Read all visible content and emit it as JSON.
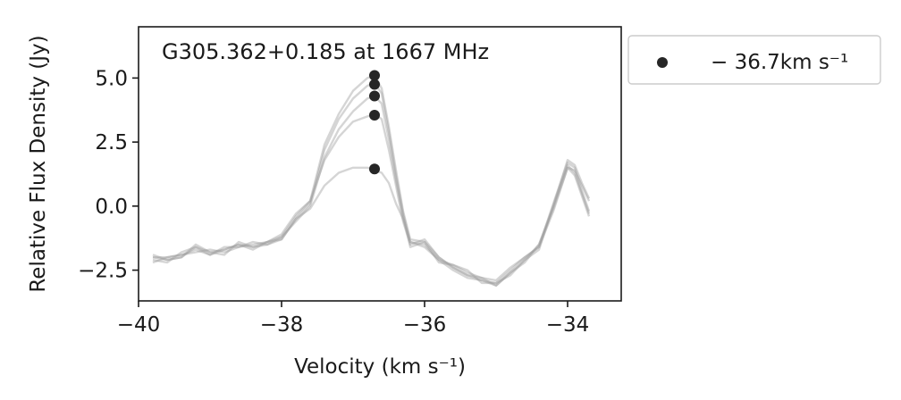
{
  "chart_data": {
    "type": "line",
    "title": "G305.362+0.185 at 1667 MHz",
    "xlabel": "Velocity (km s⁻¹)",
    "ylabel": "Relative Flux Density (Jy)",
    "xlim": [
      -40,
      -33.25
    ],
    "ylim": [
      -3.7,
      7.0
    ],
    "xticks": [
      -40,
      -38,
      -36,
      -34
    ],
    "xtick_labels": [
      "−40",
      "−38",
      "−36",
      "−34"
    ],
    "yticks": [
      -2.5,
      0.0,
      2.5,
      5.0
    ],
    "ytick_labels": [
      "−2.5",
      "0.0",
      "2.5",
      "5.0"
    ],
    "grid": false,
    "legend": {
      "position": "outside-right",
      "entries": [
        {
          "label": "− 36.7km s⁻¹",
          "marker": "dot",
          "color": "#262626"
        }
      ]
    },
    "line_color": "#9a9a9a",
    "series": [
      {
        "x": [
          -39.8,
          -39.6,
          -39.4,
          -39.2,
          -39.0,
          -38.8,
          -38.6,
          -38.4,
          -38.2,
          -38.0,
          -37.8,
          -37.6,
          -37.4,
          -37.2,
          -37.0,
          -36.8,
          -36.7,
          -36.6,
          -36.5,
          -36.4,
          -36.3,
          -36.2,
          -36.0,
          -35.8,
          -35.6,
          -35.4,
          -35.2,
          -35.0,
          -34.8,
          -34.6,
          -34.4,
          -34.2,
          -34.0,
          -33.9,
          -33.8,
          -33.7
        ],
        "values": [
          -2.0,
          -2.1,
          -2.0,
          -1.6,
          -1.9,
          -1.7,
          -1.5,
          -1.6,
          -1.4,
          -1.3,
          -0.5,
          -0.1,
          0.8,
          1.3,
          1.5,
          1.5,
          1.4,
          1.3,
          0.9,
          0.1,
          -0.5,
          -1.4,
          -1.6,
          -2.1,
          -2.3,
          -2.6,
          -2.8,
          -2.9,
          -2.4,
          -2.0,
          -1.6,
          -0.2,
          1.5,
          1.4,
          0.8,
          0.2
        ]
      },
      {
        "x": [
          -39.8,
          -39.6,
          -39.4,
          -39.2,
          -39.0,
          -38.8,
          -38.6,
          -38.4,
          -38.2,
          -38.0,
          -37.8,
          -37.6,
          -37.4,
          -37.2,
          -37.0,
          -36.8,
          -36.7,
          -36.6,
          -36.5,
          -36.4,
          -36.3,
          -36.2,
          -36.0,
          -35.8,
          -35.6,
          -35.4,
          -35.2,
          -35.0,
          -34.8,
          -34.6,
          -34.4,
          -34.2,
          -34.0,
          -33.9,
          -33.8,
          -33.7
        ],
        "values": [
          -2.2,
          -2.0,
          -1.9,
          -1.8,
          -1.7,
          -1.8,
          -1.6,
          -1.4,
          -1.5,
          -1.2,
          -0.4,
          0.2,
          1.8,
          2.7,
          3.3,
          3.5,
          3.6,
          3.4,
          2.2,
          0.8,
          -0.6,
          -1.5,
          -1.3,
          -2.0,
          -2.4,
          -2.7,
          -2.9,
          -3.1,
          -2.6,
          -2.2,
          -1.5,
          -0.1,
          1.5,
          1.2,
          0.4,
          -0.4
        ]
      },
      {
        "x": [
          -39.8,
          -39.6,
          -39.4,
          -39.2,
          -39.0,
          -38.8,
          -38.6,
          -38.4,
          -38.2,
          -38.0,
          -37.8,
          -37.6,
          -37.4,
          -37.2,
          -37.0,
          -36.8,
          -36.7,
          -36.6,
          -36.5,
          -36.4,
          -36.3,
          -36.2,
          -36.0,
          -35.8,
          -35.6,
          -35.4,
          -35.2,
          -35.0,
          -34.8,
          -34.6,
          -34.4,
          -34.2,
          -34.0,
          -33.9,
          -33.8,
          -33.7
        ],
        "values": [
          -2.1,
          -2.2,
          -1.8,
          -1.6,
          -1.8,
          -1.7,
          -1.5,
          -1.7,
          -1.4,
          -1.2,
          -0.6,
          0.0,
          1.9,
          3.0,
          3.7,
          4.2,
          4.3,
          4.0,
          2.6,
          1.0,
          -0.4,
          -1.6,
          -1.4,
          -2.2,
          -2.3,
          -2.5,
          -3.0,
          -3.0,
          -2.7,
          -2.1,
          -1.7,
          0.0,
          1.6,
          1.3,
          0.5,
          -0.3
        ]
      },
      {
        "x": [
          -39.8,
          -39.6,
          -39.4,
          -39.2,
          -39.0,
          -38.8,
          -38.6,
          -38.4,
          -38.2,
          -38.0,
          -37.8,
          -37.6,
          -37.4,
          -37.2,
          -37.0,
          -36.8,
          -36.7,
          -36.6,
          -36.5,
          -36.4,
          -36.3,
          -36.2,
          -36.0,
          -35.8,
          -35.6,
          -35.4,
          -35.2,
          -35.0,
          -34.8,
          -34.6,
          -34.4,
          -34.2,
          -34.0,
          -33.9,
          -33.8,
          -33.7
        ],
        "values": [
          -1.9,
          -2.1,
          -2.0,
          -1.5,
          -1.8,
          -1.9,
          -1.4,
          -1.6,
          -1.5,
          -1.3,
          -0.5,
          0.1,
          2.2,
          3.4,
          4.2,
          4.7,
          4.8,
          4.4,
          2.9,
          1.2,
          -0.3,
          -1.4,
          -1.5,
          -2.1,
          -2.5,
          -2.8,
          -2.9,
          -3.0,
          -2.5,
          -2.0,
          -1.6,
          0.1,
          1.7,
          1.5,
          0.6,
          -0.2
        ]
      },
      {
        "x": [
          -39.8,
          -39.6,
          -39.4,
          -39.2,
          -39.0,
          -38.8,
          -38.6,
          -38.4,
          -38.2,
          -38.0,
          -37.8,
          -37.6,
          -37.4,
          -37.2,
          -37.0,
          -36.8,
          -36.7,
          -36.6,
          -36.5,
          -36.4,
          -36.3,
          -36.2,
          -36.0,
          -35.8,
          -35.6,
          -35.4,
          -35.2,
          -35.0,
          -34.8,
          -34.6,
          -34.4,
          -34.2,
          -34.0,
          -33.9,
          -33.8,
          -33.7
        ],
        "values": [
          -2.0,
          -2.0,
          -1.9,
          -1.7,
          -1.9,
          -1.6,
          -1.6,
          -1.5,
          -1.4,
          -1.1,
          -0.3,
          0.2,
          2.4,
          3.6,
          4.5,
          5.0,
          5.1,
          4.6,
          3.1,
          1.4,
          -0.2,
          -1.3,
          -1.4,
          -2.0,
          -2.4,
          -2.7,
          -2.8,
          -3.1,
          -2.6,
          -2.1,
          -1.5,
          0.0,
          1.8,
          1.6,
          0.9,
          0.3
        ]
      }
    ],
    "markers": {
      "x": -36.7,
      "values": [
        1.45,
        3.55,
        4.3,
        4.75,
        5.1
      ],
      "color": "#262626"
    }
  }
}
